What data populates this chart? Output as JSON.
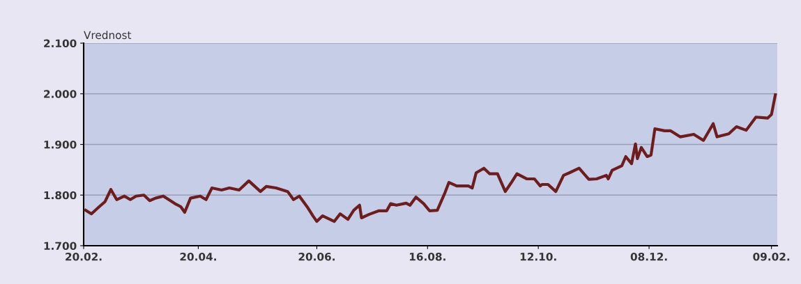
{
  "chart_data": {
    "type": "line",
    "ylabel": "Vrednost",
    "xlim": [
      "2010-02-20",
      "2011-02-12"
    ],
    "ylim": [
      1700,
      2100
    ],
    "xticks": [
      {
        "value": "2010-02-20",
        "label": "20.02."
      },
      {
        "value": "2010-04-20",
        "label": "20.04."
      },
      {
        "value": "2010-06-20",
        "label": "20.06."
      },
      {
        "value": "2010-08-16",
        "label": "16.08."
      },
      {
        "value": "2010-10-12",
        "label": "12.10."
      },
      {
        "value": "2010-12-08",
        "label": "08.12."
      },
      {
        "value": "2011-02-09",
        "label": "09.02."
      }
    ],
    "yticks": [
      {
        "value": 1700,
        "label": "1.700"
      },
      {
        "value": 1800,
        "label": "1.800"
      },
      {
        "value": 1900,
        "label": "1.900"
      },
      {
        "value": 2000,
        "label": "2.000"
      },
      {
        "value": 2100,
        "label": "2.100"
      }
    ],
    "grid": "y",
    "marker": "none",
    "line_style": "solid",
    "series": [
      {
        "color": "#6e1c1c",
        "x": [
          "2010-02-21",
          "2010-02-24",
          "2010-02-28",
          "2010-03-03",
          "2010-03-06",
          "2010-03-09",
          "2010-03-13",
          "2010-03-16",
          "2010-03-19",
          "2010-03-23",
          "2010-03-26",
          "2010-03-29",
          "2010-04-02",
          "2010-04-08",
          "2010-04-11",
          "2010-04-13",
          "2010-04-16",
          "2010-04-21",
          "2010-04-24",
          "2010-04-27",
          "2010-05-02",
          "2010-05-06",
          "2010-05-11",
          "2010-05-16",
          "2010-05-22",
          "2010-05-25",
          "2010-05-30",
          "2010-06-05",
          "2010-06-08",
          "2010-06-11",
          "2010-06-15",
          "2010-06-18",
          "2010-06-20",
          "2010-06-23",
          "2010-06-29",
          "2010-07-02",
          "2010-07-06",
          "2010-07-09",
          "2010-07-12",
          "2010-07-13",
          "2010-07-17",
          "2010-07-22",
          "2010-07-26",
          "2010-07-28",
          "2010-07-31",
          "2010-08-05",
          "2010-08-07",
          "2010-08-10",
          "2010-08-14",
          "2010-08-17",
          "2010-08-21",
          "2010-08-25",
          "2010-08-27",
          "2010-08-31",
          "2010-09-06",
          "2010-09-08",
          "2010-09-10",
          "2010-09-14",
          "2010-09-17",
          "2010-09-21",
          "2010-09-25",
          "2010-09-28",
          "2010-10-01",
          "2010-10-06",
          "2010-10-10",
          "2010-10-13",
          "2010-10-14",
          "2010-10-17",
          "2010-10-21",
          "2010-10-25",
          "2010-10-28",
          "2010-11-02",
          "2010-11-07",
          "2010-11-11",
          "2010-11-16",
          "2010-11-17",
          "2010-11-19",
          "2010-11-24",
          "2010-11-26",
          "2010-11-29",
          "2010-12-01",
          "2010-12-02",
          "2010-12-04",
          "2010-12-07",
          "2010-12-09",
          "2010-12-11",
          "2010-12-16",
          "2010-12-19",
          "2010-12-24",
          "2010-12-31",
          "2011-01-05",
          "2011-01-10",
          "2011-01-12",
          "2011-01-18",
          "2011-01-22",
          "2011-01-27",
          "2011-02-01",
          "2011-02-07",
          "2011-02-09",
          "2011-02-11"
        ],
        "values": [
          1770,
          1763,
          1777,
          1787,
          1811,
          1791,
          1798,
          1791,
          1798,
          1800,
          1789,
          1794,
          1798,
          1783,
          1777,
          1766,
          1794,
          1798,
          1791,
          1814,
          1810,
          1814,
          1810,
          1828,
          1807,
          1817,
          1814,
          1807,
          1791,
          1798,
          1777,
          1759,
          1748,
          1759,
          1748,
          1763,
          1752,
          1770,
          1780,
          1755,
          1762,
          1769,
          1769,
          1783,
          1780,
          1784,
          1780,
          1796,
          1783,
          1769,
          1770,
          1805,
          1825,
          1818,
          1818,
          1814,
          1844,
          1853,
          1842,
          1842,
          1807,
          1824,
          1842,
          1832,
          1832,
          1818,
          1821,
          1821,
          1807,
          1839,
          1844,
          1853,
          1831,
          1832,
          1839,
          1832,
          1849,
          1858,
          1876,
          1862,
          1901,
          1872,
          1894,
          1876,
          1879,
          1931,
          1927,
          1927,
          1915,
          1920,
          1908,
          1941,
          1915,
          1921,
          1935,
          1928,
          1954,
          1952,
          1959,
          1998
        ]
      }
    ]
  }
}
